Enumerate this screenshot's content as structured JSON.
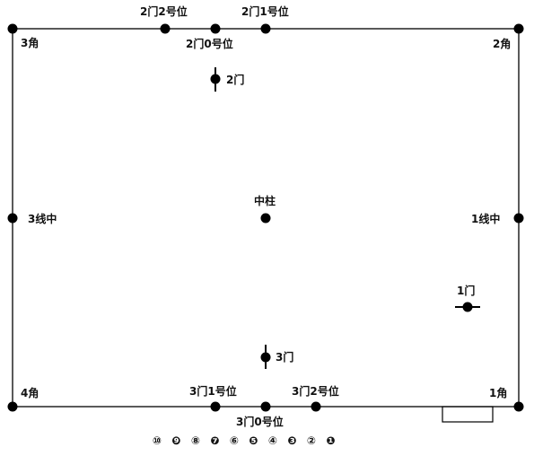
{
  "corners": {
    "c1": "1角",
    "c2": "2角",
    "c3": "3角",
    "c4": "4角"
  },
  "midlines": {
    "line1": "1线中",
    "line3": "3线中",
    "center": "中柱"
  },
  "doors": {
    "door1": "1门",
    "door2": "2门",
    "door3": "3门"
  },
  "positions": {
    "g2p0": "2门0号位",
    "g2p1": "2门1号位",
    "g2p2": "2门2号位",
    "g3p0": "3门0号位",
    "g3p1": "3门1号位",
    "g3p2": "3门2号位"
  },
  "number_row": [
    "⑩",
    "❾",
    "⑧",
    "❼",
    "⑥",
    "❺",
    "④",
    "❸",
    "②",
    "❶"
  ],
  "colors": {
    "line": "#000000",
    "dot": "#000000",
    "background": "#ffffff"
  }
}
